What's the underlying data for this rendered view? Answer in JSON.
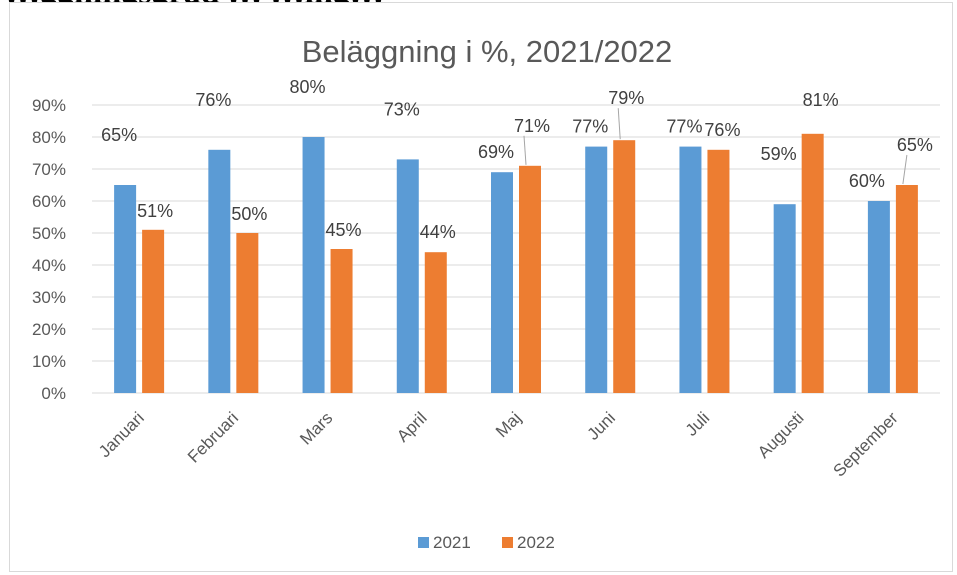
{
  "header_text": "…ggningsgrad … …ing…",
  "chart_data": {
    "type": "bar",
    "title": "Beläggning i %, 2021/2022",
    "categories": [
      "Januari",
      "Februari",
      "Mars",
      "April",
      "Maj",
      "Juni",
      "Juli",
      "Augusti",
      "September"
    ],
    "series": [
      {
        "name": "2021",
        "color": "#5b9bd5",
        "values": [
          65,
          76,
          80,
          73,
          69,
          77,
          77,
          59,
          60
        ],
        "labels": [
          "65%",
          "76%",
          "80%",
          "73%",
          "69%",
          "77%",
          "77%",
          "59%",
          "60%"
        ]
      },
      {
        "name": "2022",
        "color": "#ed7d31",
        "values": [
          51,
          50,
          45,
          44,
          71,
          79,
          76,
          81,
          65
        ],
        "labels": [
          "51%",
          "50%",
          "45%",
          "44%",
          "71%",
          "79%",
          "76%",
          "81%",
          "65%"
        ]
      }
    ],
    "ylim": [
      0,
      90
    ],
    "yticks": [
      0,
      10,
      20,
      30,
      40,
      50,
      60,
      70,
      80,
      90
    ],
    "ytick_labels": [
      "0%",
      "10%",
      "20%",
      "30%",
      "40%",
      "50%",
      "60%",
      "70%",
      "80%",
      "90%"
    ],
    "xlabel": "",
    "ylabel": "",
    "grid": true,
    "legend_position": "bottom",
    "gridline_color": "#d9d9d9"
  }
}
